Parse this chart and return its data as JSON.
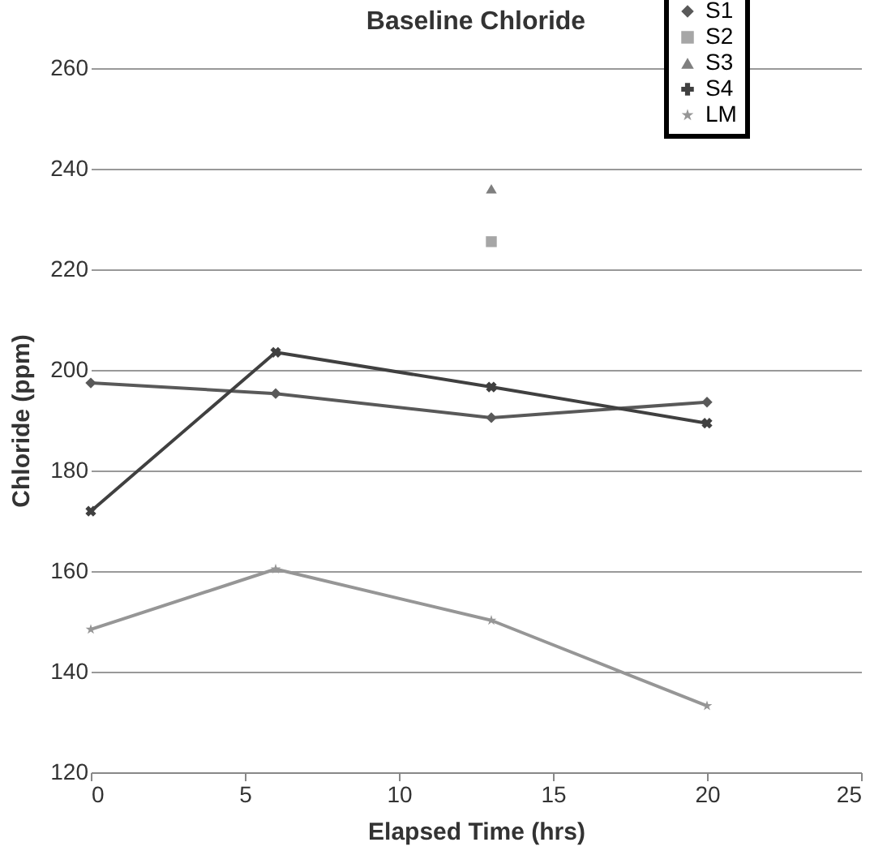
{
  "chart_data": {
    "type": "line",
    "title": "Baseline Chloride",
    "xlabel": "Elapsed Time (hrs)",
    "ylabel": "Chloride (ppm)",
    "xlim": [
      0,
      25
    ],
    "xticks": [
      0,
      5,
      10,
      15,
      20,
      25
    ],
    "ylim": [
      120,
      260
    ],
    "yticks": [
      120,
      140,
      160,
      180,
      200,
      220,
      240,
      260
    ],
    "grid": "y",
    "legend": "top right",
    "series": [
      {
        "name": "S1",
        "color": "#595959",
        "marker": "diamond",
        "x": [
          0,
          6,
          13,
          20
        ],
        "values": [
          197.4,
          195.3,
          190.5,
          193.6
        ]
      },
      {
        "name": "S2",
        "color": "#a6a6a6",
        "marker": "square",
        "x": [
          13
        ],
        "values": [
          225.5
        ]
      },
      {
        "name": "S3",
        "color": "#7f7f7f",
        "marker": "triangle",
        "x": [
          13
        ],
        "values": [
          236
        ]
      },
      {
        "name": "S4",
        "color": "#404040",
        "marker": "cross",
        "x": [
          0,
          6,
          13,
          20
        ],
        "values": [
          171.9,
          203.5,
          196.6,
          189.4
        ]
      },
      {
        "name": "LM",
        "color": "#969696",
        "marker": "star",
        "x": [
          0,
          6,
          13,
          20
        ],
        "values": [
          148.4,
          160.4,
          150.2,
          133.2
        ]
      }
    ]
  }
}
